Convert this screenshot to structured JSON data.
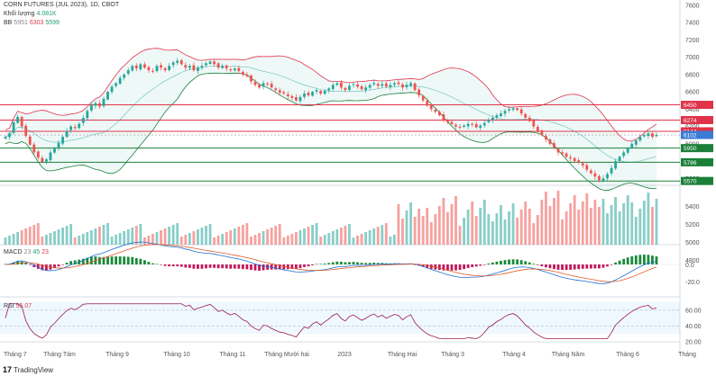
{
  "header": {
    "title": "CORN FUTURES (JUL 2023), 1D, CBOT",
    "volume_label": "Khối lượng",
    "volume_value": "4.081K",
    "bb_label": "BB",
    "bb_basis": "5951",
    "bb_upper": "6303",
    "bb_lower": "5599",
    "macd_label": "MACD",
    "macd_params": "23",
    "macd_v1": "45",
    "macd_v2": "23",
    "rsi_label": "RSI",
    "rsi_value": "55.07"
  },
  "colors": {
    "up": "#26a69a",
    "down": "#ef5350",
    "level_red": "#e0334a",
    "level_green": "#1b7f3a",
    "bb_fill": "#26a69a",
    "bb_upper": "#e0334a",
    "bb_lower": "#1b7f3a",
    "macd_line": "#1a6fd1",
    "signal_line": "#e05a2a",
    "rsi_line": "#9c1c4a"
  },
  "chart_data": [
    {
      "type": "candlestick",
      "name": "price",
      "x_tick_labels": [
        "Tháng 7",
        "Tháng Tám",
        "Tháng 9",
        "Tháng 10",
        "Tháng 11",
        "Tháng Mười hai",
        "2023",
        "Tháng Hai",
        "Tháng 3",
        "Tháng 4",
        "Tháng Năm",
        "Tháng 6",
        "Tháng"
      ],
      "y_tick_labels": [
        "7600",
        "7400",
        "7200",
        "7000",
        "6800",
        "6600",
        "6400",
        "6200",
        "6000",
        "5800",
        "5600"
      ],
      "ylim": [
        5520,
        7620
      ],
      "levels": [
        {
          "value": "6450",
          "color": "red"
        },
        {
          "value": "6274",
          "color": "red"
        },
        {
          "value": "6144",
          "color": "red"
        },
        {
          "value": "6102",
          "color": "gray"
        },
        {
          "value": "5950",
          "color": "green"
        },
        {
          "value": "5786",
          "color": "green"
        },
        {
          "value": "5570",
          "color": "green"
        }
      ],
      "close_series": [
        6080,
        6120,
        6250,
        6310,
        6200,
        6090,
        5990,
        5900,
        5840,
        5790,
        5820,
        5900,
        5950,
        6010,
        6080,
        6150,
        6200,
        6180,
        6230,
        6300,
        6380,
        6450,
        6470,
        6430,
        6520,
        6600,
        6660,
        6700,
        6760,
        6800,
        6850,
        6900,
        6870,
        6920,
        6880,
        6850,
        6840,
        6900,
        6880,
        6850,
        6900,
        6940,
        6960,
        6920,
        6880,
        6900,
        6850,
        6880,
        6900,
        6930,
        6950,
        6920,
        6880,
        6900,
        6870,
        6850,
        6870,
        6840,
        6800,
        6780,
        6720,
        6680,
        6650,
        6700,
        6690,
        6650,
        6620,
        6590,
        6580,
        6550,
        6530,
        6500,
        6540,
        6580,
        6560,
        6600,
        6620,
        6580,
        6610,
        6640,
        6680,
        6700,
        6650,
        6620,
        6670,
        6690,
        6660,
        6630,
        6650,
        6680,
        6700,
        6670,
        6690,
        6660,
        6680,
        6700,
        6690,
        6650,
        6680,
        6700,
        6620,
        6560,
        6500,
        6440,
        6400,
        6370,
        6330,
        6280,
        6250,
        6230,
        6200,
        6190,
        6210,
        6230,
        6220,
        6190,
        6210,
        6240,
        6280,
        6300,
        6330,
        6350,
        6380,
        6400,
        6410,
        6390,
        6350,
        6300,
        6260,
        6200,
        6150,
        6100,
        6050,
        6000,
        5950,
        5900,
        5880,
        5850,
        5830,
        5800,
        5780,
        5750,
        5700,
        5660,
        5620,
        5580,
        5600,
        5650,
        5720,
        5800,
        5850,
        5900,
        5950,
        6000,
        6040,
        6080,
        6100,
        6120,
        6080,
        6102
      ],
      "up_color": "#26a69a",
      "down_color": "#ef5350"
    },
    {
      "type": "bar",
      "name": "volume",
      "y_tick_labels": [
        "5400",
        "5200",
        "5000",
        "4800"
      ]
    },
    {
      "type": "line",
      "name": "macd",
      "y_tick_labels": [
        "0.0",
        "-20.0"
      ]
    },
    {
      "type": "line",
      "name": "rsi",
      "y_tick_labels": [
        "60.00",
        "40.00",
        "20.00"
      ],
      "ylim": [
        20,
        70
      ]
    }
  ],
  "footer": {
    "logo_text": "TradingView"
  }
}
